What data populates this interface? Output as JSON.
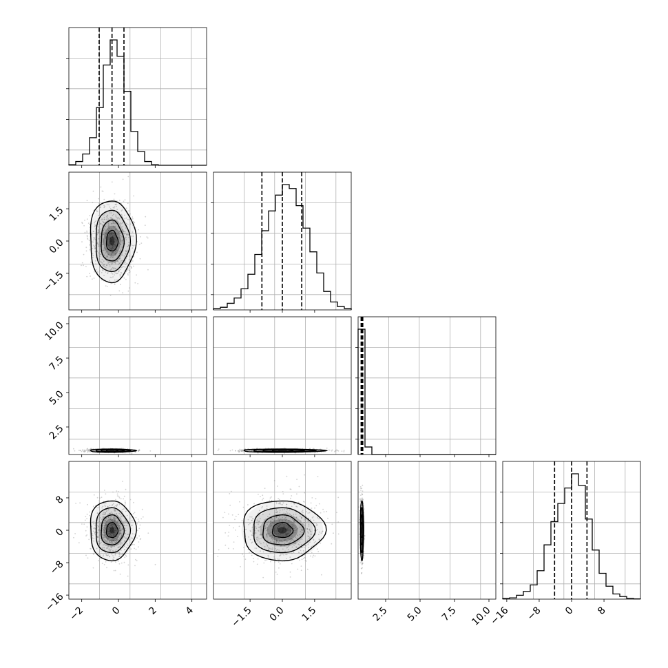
{
  "chart_data": {
    "type": "corner",
    "parameters": [
      {
        "range": [
          -2.7,
          4.8
        ],
        "ticks": [
          -2,
          0,
          2,
          4
        ],
        "tick_labels": [
          "−2",
          "0",
          "2",
          "4"
        ]
      },
      {
        "range": [
          -3.2,
          3.2
        ],
        "ticks": [
          -1.5,
          0,
          1.5
        ],
        "tick_labels": [
          "−1.5",
          "0.0",
          "1.5"
        ]
      },
      {
        "range": [
          0.5,
          10.5
        ],
        "ticks": [
          2.5,
          5,
          7.5,
          10
        ],
        "tick_labels": [
          "2.5",
          "5.0",
          "7.5",
          "10.0"
        ]
      },
      {
        "range": [
          -17,
          17
        ],
        "ticks": [
          -16,
          -8,
          0,
          8
        ],
        "tick_labels": [
          "−16",
          "−8",
          "0",
          "8"
        ]
      }
    ],
    "histograms": [
      {
        "bins": [
          -2.7,
          -2.325,
          -1.95,
          -1.575,
          -1.2,
          -0.825,
          -0.45,
          -0.075,
          0.3,
          0.675,
          1.05,
          1.425,
          1.8,
          2.175,
          2.55,
          2.925,
          3.3,
          3.675,
          4.05,
          4.425,
          4.8
        ],
        "counts": [
          0.005,
          0.03,
          0.09,
          0.22,
          0.46,
          0.8,
          1.0,
          0.87,
          0.59,
          0.27,
          0.11,
          0.03,
          0.005,
          0,
          0,
          0,
          0,
          0,
          0,
          0
        ],
        "quantiles": [
          -1.05,
          -0.35,
          0.3
        ]
      },
      {
        "bins": [
          -3.2,
          -2.88,
          -2.56,
          -2.24,
          -1.92,
          -1.6,
          -1.28,
          -0.96,
          -0.64,
          -0.32,
          0,
          0.32,
          0.64,
          0.96,
          1.28,
          1.6,
          1.92,
          2.24,
          2.56,
          2.88,
          3.2
        ],
        "counts": [
          0.01,
          0.02,
          0.05,
          0.09,
          0.16,
          0.27,
          0.42,
          0.6,
          0.75,
          0.87,
          0.95,
          0.92,
          0.79,
          0.62,
          0.44,
          0.28,
          0.14,
          0.06,
          0.025,
          0.01
        ],
        "quantiles": [
          -0.95,
          0.0,
          0.9
        ]
      },
      {
        "bins": [
          0.5,
          1.0,
          1.5,
          2.0,
          2.5,
          3.0,
          3.5,
          4.0,
          4.5,
          5.0,
          5.5,
          6.0,
          6.5,
          7.0,
          7.5,
          8.0,
          8.5,
          9.0,
          9.5,
          10.0,
          10.5
        ],
        "counts": [
          1.0,
          0.06,
          0,
          0,
          0,
          0,
          0,
          0,
          0,
          0,
          0,
          0,
          0,
          0,
          0,
          0,
          0,
          0,
          0,
          0
        ],
        "quantiles": [
          0.72,
          0.78,
          0.84
        ]
      },
      {
        "bins": [
          -17,
          -15.3,
          -13.6,
          -11.9,
          -10.2,
          -8.5,
          -6.8,
          -5.1,
          -3.4,
          -1.7,
          0,
          1.7,
          3.4,
          5.1,
          6.8,
          8.5,
          10.2,
          11.9,
          13.6,
          15.3,
          17
        ],
        "counts": [
          0.005,
          0.01,
          0.03,
          0.06,
          0.11,
          0.22,
          0.42,
          0.6,
          0.74,
          0.86,
          0.97,
          0.88,
          0.62,
          0.38,
          0.2,
          0.1,
          0.04,
          0.02,
          0.005,
          0.002
        ],
        "quantiles": [
          -4.2,
          0.0,
          3.8
        ]
      }
    ],
    "joint": [
      {
        "x": 0,
        "y": 1,
        "center": [
          -0.35,
          0.0
        ],
        "sigma": [
          0.62,
          0.95
        ]
      },
      {
        "x": 0,
        "y": 2,
        "center": [
          -0.35,
          0.78
        ],
        "sigma": [
          0.62,
          0.06
        ]
      },
      {
        "x": 1,
        "y": 2,
        "center": [
          0.0,
          0.78
        ],
        "sigma": [
          0.95,
          0.06
        ]
      },
      {
        "x": 0,
        "y": 3,
        "center": [
          -0.35,
          0.0
        ],
        "sigma": [
          0.62,
          3.7
        ]
      },
      {
        "x": 1,
        "y": 3,
        "center": [
          0.0,
          0.0
        ],
        "sigma": [
          0.95,
          3.7
        ]
      },
      {
        "x": 2,
        "y": 3,
        "center": [
          0.78,
          0.0
        ],
        "sigma": [
          0.06,
          3.7
        ]
      }
    ]
  }
}
